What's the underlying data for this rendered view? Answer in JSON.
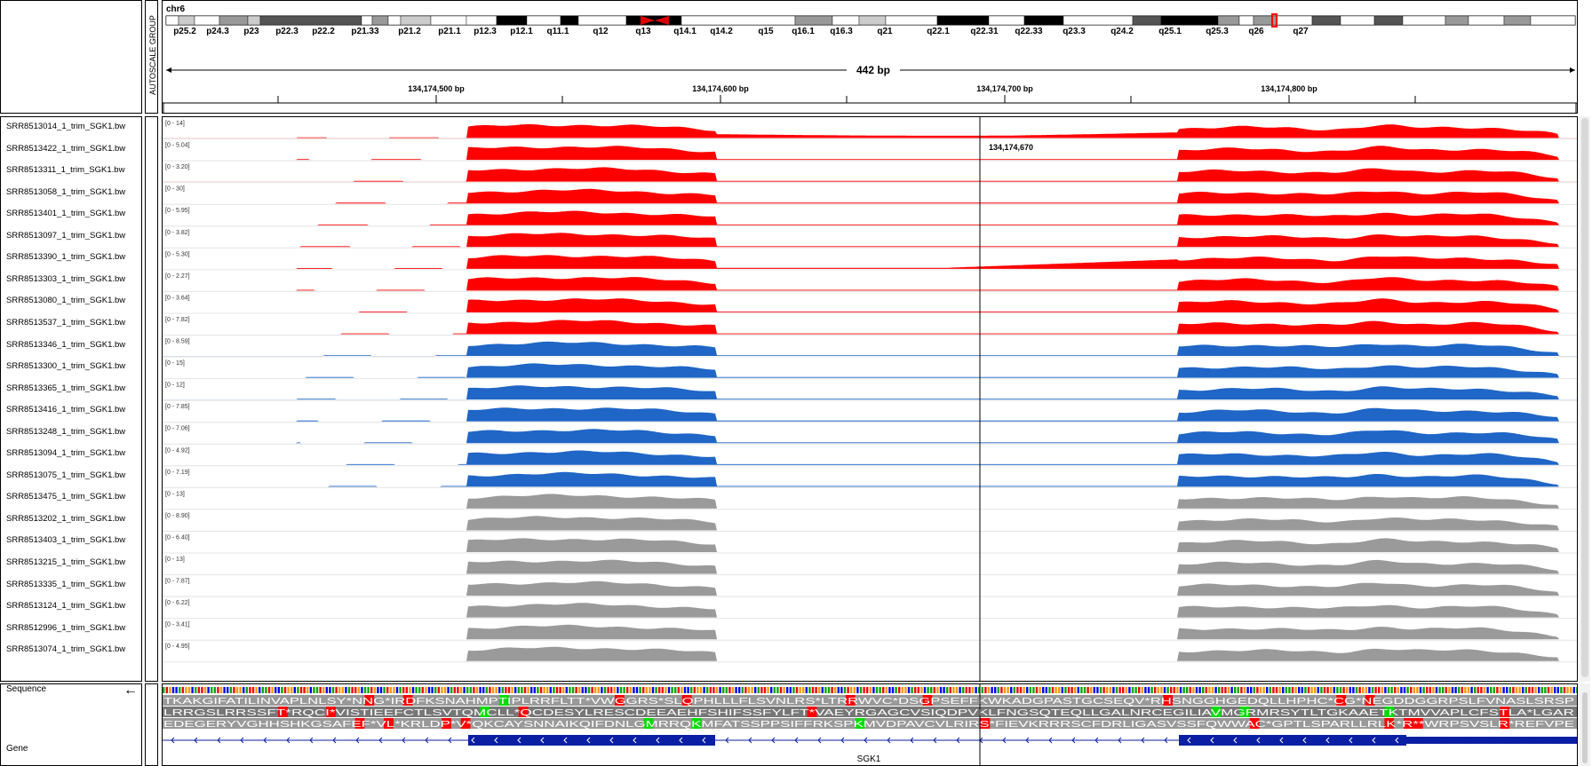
{
  "header": {
    "chromosome": "chr6",
    "attribute_panel_label": "AUTOSCALE GROUP",
    "span": "442 bp",
    "ruler_ticks": [
      "134,174,500 bp",
      "134,174,600 bp",
      "134,174,700 bp",
      "134,174,800 bp"
    ],
    "cytobands": [
      "p25.2",
      "p24.3",
      "p23",
      "p22.3",
      "p22.2",
      "p21.33",
      "p21.2",
      "p21.1",
      "p12.3",
      "p12.1",
      "q11.1",
      "q12",
      "q13",
      "q14.1",
      "q14.2",
      "q15",
      "q16.1",
      "q16.3",
      "q21",
      "q22.1",
      "q22.31",
      "q22.33",
      "q23.3",
      "q24.2",
      "q25.1",
      "q25.3",
      "q26",
      "q27"
    ]
  },
  "cursor": {
    "position_label": "134,174,670"
  },
  "tracks": [
    {
      "name": "SRR8513014_1_trim_SGK1.bw",
      "range": "[0 - 14]",
      "color": "#ff0000"
    },
    {
      "name": "SRR8513422_1_trim_SGK1.bw",
      "range": "[0 - 5.04]",
      "color": "#ff0000"
    },
    {
      "name": "SRR8513311_1_trim_SGK1.bw",
      "range": "[0 - 3.20]",
      "color": "#ff0000"
    },
    {
      "name": "SRR8513058_1_trim_SGK1.bw",
      "range": "[0 - 30]",
      "color": "#ff0000"
    },
    {
      "name": "SRR8513401_1_trim_SGK1.bw",
      "range": "[0 - 5.95]",
      "color": "#ff0000"
    },
    {
      "name": "SRR8513097_1_trim_SGK1.bw",
      "range": "[0 - 3.82]",
      "color": "#ff0000"
    },
    {
      "name": "SRR8513390_1_trim_SGK1.bw",
      "range": "[0 - 5.30]",
      "color": "#ff0000"
    },
    {
      "name": "SRR8513303_1_trim_SGK1.bw",
      "range": "[0 - 2.27]",
      "color": "#ff0000"
    },
    {
      "name": "SRR8513080_1_trim_SGK1.bw",
      "range": "[0 - 3.64]",
      "color": "#ff0000"
    },
    {
      "name": "SRR8513537_1_trim_SGK1.bw",
      "range": "[0 - 7.82]",
      "color": "#ff0000"
    },
    {
      "name": "SRR8513346_1_trim_SGK1.bw",
      "range": "[0 - 8.59]",
      "color": "#1f66c6"
    },
    {
      "name": "SRR8513300_1_trim_SGK1.bw",
      "range": "[0 - 15]",
      "color": "#1f66c6"
    },
    {
      "name": "SRR8513365_1_trim_SGK1.bw",
      "range": "[0 - 12]",
      "color": "#1f66c6"
    },
    {
      "name": "SRR8513416_1_trim_SGK1.bw",
      "range": "[0 - 7.85]",
      "color": "#1f66c6"
    },
    {
      "name": "SRR8513248_1_trim_SGK1.bw",
      "range": "[0 - 7.06]",
      "color": "#1f66c6"
    },
    {
      "name": "SRR8513094_1_trim_SGK1.bw",
      "range": "[0 - 4.92]",
      "color": "#1f66c6"
    },
    {
      "name": "SRR8513075_1_trim_SGK1.bw",
      "range": "[0 - 7.19]",
      "color": "#1f66c6"
    },
    {
      "name": "SRR8513475_1_trim_SGK1.bw",
      "range": "[0 - 13]",
      "color": "#9a9a9a"
    },
    {
      "name": "SRR8513202_1_trim_SGK1.bw",
      "range": "[0 - 8.90]",
      "color": "#9a9a9a"
    },
    {
      "name": "SRR8513403_1_trim_SGK1.bw",
      "range": "[0 - 6.40]",
      "color": "#9a9a9a"
    },
    {
      "name": "SRR8513215_1_trim_SGK1.bw",
      "range": "[0 - 13]",
      "color": "#9a9a9a"
    },
    {
      "name": "SRR8513335_1_trim_SGK1.bw",
      "range": "[0 - 7.87]",
      "color": "#9a9a9a"
    },
    {
      "name": "SRR8513124_1_trim_SGK1.bw",
      "range": "[0 - 6.22]",
      "color": "#9a9a9a"
    },
    {
      "name": "SRR8512996_1_trim_SGK1.bw",
      "range": "[0 - 3.41]",
      "color": "#9a9a9a"
    },
    {
      "name": "SRR8513074_1_trim_SGK1.bw",
      "range": "[0 - 4.95]",
      "color": "#9a9a9a"
    }
  ],
  "feature_tracks": {
    "sequence_label": "Sequence",
    "gene_label": "Gene",
    "gene_name": "SGK1",
    "translation_frames": [
      "TKAKGIFATILINVAPLNLSY*NNG*IRDFKSNAHMPTIPLRRFLTT*VWGGRS*SLQPHLLLFLSVNLRS*LTRRWVC*DSGPSEFFKWKADGPASTGCSEQV*RHSNGGHGEDQLLHPHC*CG*NEGDDGGRPSLFVNASLSRSP",
      "LRRGSLRRSSFT*RQCI*VISTIEEFCTLSVTQMCLL*QCDESYLRESCDEEAEHFSHIFSSFYLFT*VAEYRGAGCVSIQDPVKLFNGSQTEQLLGALNRCEGILIAVMGRMRSYTLTGKAAETKTMVVAPLCFSTLA*LGAR",
      "EDEGERYVGHHSHKGSAFEF*VL*KRLDP*V*QKCAYSNNAIKQIFDNLGMRRQKMFATSSPPSIFFRKSPKMVDPAVCVLRIRS*FIEVKRRRSCFDRLIGASVSSFQWWAC*GPTLSPARLLRLK*R**WRPSVSLR*REFVPE"
    ],
    "strand_arrow": "←"
  },
  "colors": {
    "forward_strand": "#ff0000",
    "reverse_strand": "#1f66c6",
    "unstranded": "#9a9a9a",
    "gene_exon": "#0a1fa3",
    "stop_codon": "#ff0000",
    "start_codon": "#00dd00",
    "centromere": "#dd0000",
    "selected_region": "#ff0000"
  }
}
